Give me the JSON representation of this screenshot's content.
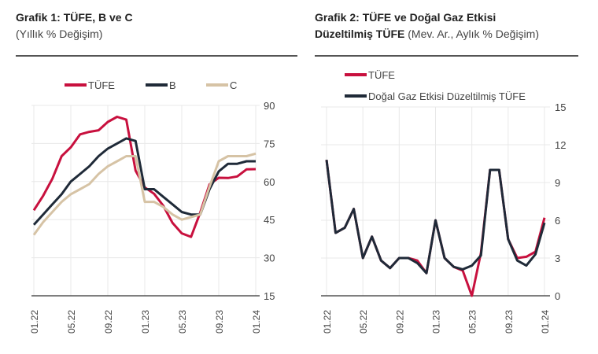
{
  "chart_data": [
    {
      "type": "line",
      "title": "Grafik 1: TÜFE, B ve C",
      "subtitle": "(Yıllık % Değişim)",
      "ylim": [
        15,
        90
      ],
      "yticks": [
        15,
        30,
        45,
        60,
        75,
        90
      ],
      "xticks": [
        "01.22",
        "05.22",
        "09.22",
        "01.23",
        "05.23",
        "09.23",
        "01.24"
      ],
      "grid": "vertical and horizontal",
      "legend": "top",
      "series": [
        {
          "name": "TÜFE",
          "color": "#c8103e",
          "values": [
            48.7,
            54.4,
            61.1,
            70.0,
            73.5,
            78.6,
            79.6,
            80.2,
            83.5,
            85.5,
            84.4,
            64.3,
            57.7,
            55.2,
            50.5,
            43.7,
            39.6,
            38.2,
            47.8,
            58.9,
            61.5,
            61.4,
            62.0,
            64.8,
            64.9
          ]
        },
        {
          "name": "B",
          "color": "#1f2a38",
          "values": [
            43,
            47,
            51,
            55,
            60,
            63,
            66,
            70,
            73,
            75,
            77,
            76,
            57,
            57,
            54,
            51,
            48,
            47,
            47,
            57,
            64,
            67,
            67,
            68,
            68
          ]
        },
        {
          "name": "C",
          "color": "#d6c3a5",
          "values": [
            39,
            44,
            48,
            52,
            55,
            57,
            59,
            63,
            66,
            68,
            70,
            70,
            52,
            52,
            50,
            47,
            45,
            46,
            47,
            58,
            68,
            70,
            70,
            70,
            71
          ]
        }
      ]
    },
    {
      "type": "line",
      "title": "Grafik 2: TÜFE ve Doğal Gaz Etkisi Düzeltilmiş TÜFE",
      "title_line1": "Grafik 2: TÜFE ve Doğal Gaz Etkisi",
      "title_line2_bold": "Düzeltilmiş TÜFE",
      "subtitle": "(Mev. Ar., Aylık % Değişim)",
      "ylim": [
        0,
        15
      ],
      "yticks": [
        0,
        3,
        6,
        9,
        12,
        15
      ],
      "xticks": [
        "01.22",
        "05.22",
        "09.22",
        "01.23",
        "05.23",
        "09.23",
        "01.24"
      ],
      "grid": "vertical and horizontal",
      "legend": "top-left",
      "series": [
        {
          "name": "TÜFE",
          "color": "#c8103e",
          "values": [
            10.8,
            5.0,
            5.4,
            6.9,
            3.0,
            4.7,
            2.8,
            2.2,
            3.0,
            3.0,
            2.8,
            1.8,
            6.0,
            3.0,
            2.3,
            2.0,
            0.0,
            3.4,
            10.0,
            10.0,
            4.5,
            3.0,
            3.1,
            3.5,
            6.2
          ]
        },
        {
          "name": "Doğal Gaz Etkisi Düzeltilmiş TÜFE",
          "color": "#1f2a38",
          "values": [
            10.8,
            5.0,
            5.4,
            6.9,
            3.0,
            4.7,
            2.8,
            2.2,
            3.0,
            3.0,
            2.6,
            1.8,
            6.0,
            3.0,
            2.3,
            2.1,
            2.4,
            3.2,
            10.0,
            10.0,
            4.5,
            2.8,
            2.4,
            3.3,
            5.8
          ]
        }
      ]
    }
  ]
}
